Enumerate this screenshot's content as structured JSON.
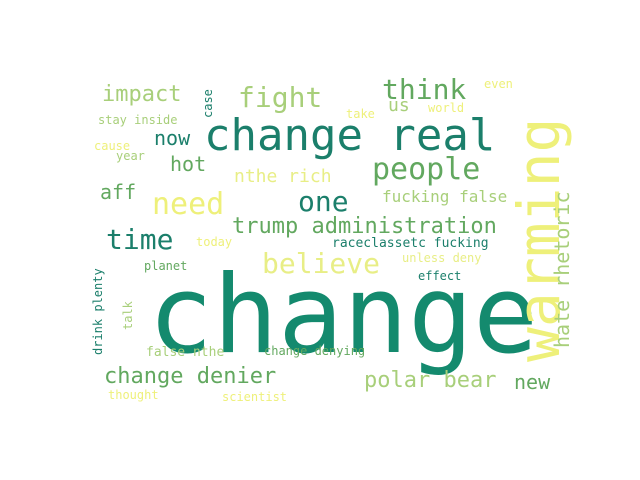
{
  "colors": {
    "background": "#ffffff",
    "dark_green": "#148a6e",
    "teal": "#1b7f6b",
    "mid_green": "#62a85f",
    "light_green": "#a8cf7a",
    "pale_yellow": "#e8ee86",
    "yellow": "#eef07a"
  },
  "words": [
    {
      "text": "change",
      "weight": 1.0
    },
    {
      "text": "warming",
      "weight": 0.6
    },
    {
      "text": "change real",
      "weight": 0.5
    },
    {
      "text": "people",
      "weight": 0.35
    },
    {
      "text": "fight",
      "weight": 0.33
    },
    {
      "text": "think",
      "weight": 0.33
    },
    {
      "text": "need",
      "weight": 0.33
    },
    {
      "text": "one",
      "weight": 0.33
    },
    {
      "text": "time",
      "weight": 0.33
    },
    {
      "text": "believe",
      "weight": 0.33
    },
    {
      "text": "impact",
      "weight": 0.28
    },
    {
      "text": "trump administration",
      "weight": 0.28
    },
    {
      "text": "change denier",
      "weight": 0.28
    },
    {
      "text": "polar bear",
      "weight": 0.26
    },
    {
      "text": "hate rhetoric",
      "weight": 0.25
    },
    {
      "text": "now",
      "weight": 0.25
    },
    {
      "text": "hot",
      "weight": 0.25
    },
    {
      "text": "aff",
      "weight": 0.25
    },
    {
      "text": "new",
      "weight": 0.25
    },
    {
      "text": "us",
      "weight": 0.22
    },
    {
      "text": "nthe rich",
      "weight": 0.22
    },
    {
      "text": "fucking false",
      "weight": 0.18
    },
    {
      "text": "raceclassetc fucking",
      "weight": 0.13
    },
    {
      "text": "false nthe",
      "weight": 0.14
    },
    {
      "text": "change denying",
      "weight": 0.12
    },
    {
      "text": "stay inside",
      "weight": 0.12
    },
    {
      "text": "drink plenty",
      "weight": 0.12
    },
    {
      "text": "unless deny",
      "weight": 0.12
    },
    {
      "text": "planet",
      "weight": 0.12
    },
    {
      "text": "effect",
      "weight": 0.12
    },
    {
      "text": "talk",
      "weight": 0.12
    },
    {
      "text": "case",
      "weight": 0.12
    },
    {
      "text": "take",
      "weight": 0.12
    },
    {
      "text": "world",
      "weight": 0.12
    },
    {
      "text": "even",
      "weight": 0.12
    },
    {
      "text": "cause",
      "weight": 0.12
    },
    {
      "text": "year",
      "weight": 0.12
    },
    {
      "text": "today",
      "weight": 0.12
    },
    {
      "text": "thought",
      "weight": 0.12
    },
    {
      "text": "scientist",
      "weight": 0.12
    }
  ]
}
